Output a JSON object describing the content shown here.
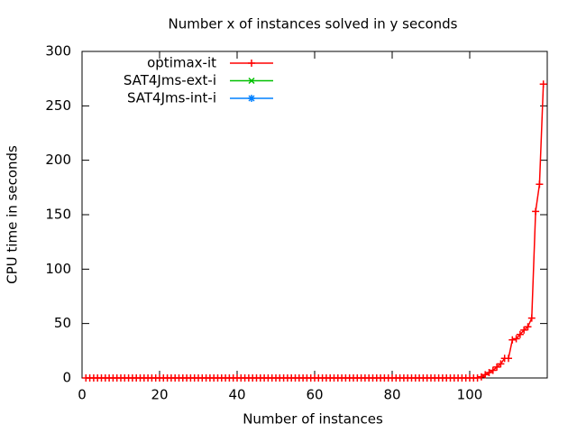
{
  "chart_data": {
    "type": "line",
    "title": "Number x of instances solved in y seconds",
    "xlabel": "Number of instances",
    "ylabel": "CPU time in seconds",
    "xlim": [
      0,
      120
    ],
    "xticks": [
      0,
      20,
      40,
      60,
      80,
      100
    ],
    "ylim": [
      0,
      300
    ],
    "yticks": [
      0,
      50,
      100,
      150,
      200,
      250,
      300
    ],
    "legend": "top-left",
    "series": [
      {
        "name": "optimax-it",
        "color": "#ff0000",
        "marker": "plus",
        "x": [
          1,
          2,
          3,
          4,
          5,
          6,
          7,
          8,
          9,
          10,
          11,
          12,
          13,
          14,
          15,
          16,
          17,
          18,
          19,
          20,
          21,
          22,
          23,
          24,
          25,
          26,
          27,
          28,
          29,
          30,
          31,
          32,
          33,
          34,
          35,
          36,
          37,
          38,
          39,
          40,
          41,
          42,
          43,
          44,
          45,
          46,
          47,
          48,
          49,
          50,
          51,
          52,
          53,
          54,
          55,
          56,
          57,
          58,
          59,
          60,
          61,
          62,
          63,
          64,
          65,
          66,
          67,
          68,
          69,
          70,
          71,
          72,
          73,
          74,
          75,
          76,
          77,
          78,
          79,
          80,
          81,
          82,
          83,
          84,
          85,
          86,
          87,
          88,
          89,
          90,
          91,
          92,
          93,
          94,
          95,
          96,
          97,
          98,
          99,
          100,
          101,
          102,
          103,
          104,
          105,
          106,
          107,
          108,
          109,
          110,
          111,
          112,
          113,
          114,
          115,
          116,
          117,
          118,
          119
        ],
        "values": [
          0,
          0,
          0,
          0,
          0,
          0,
          0,
          0,
          0,
          0,
          0,
          0,
          0,
          0,
          0,
          0,
          0,
          0,
          0,
          0,
          0,
          0,
          0,
          0,
          0,
          0,
          0,
          0,
          0,
          0,
          0,
          0,
          0,
          0,
          0,
          0,
          0,
          0,
          0,
          0,
          0,
          0,
          0,
          0,
          0,
          0,
          0,
          0,
          0,
          0,
          0,
          0,
          0,
          0,
          0,
          0,
          0,
          0,
          0,
          0,
          0,
          0,
          0,
          0,
          0,
          0,
          0,
          0,
          0,
          0,
          0,
          0,
          0,
          0,
          0,
          0,
          0,
          0,
          0,
          0,
          0,
          0,
          0,
          0,
          0,
          0,
          0,
          0,
          0,
          0,
          0,
          0,
          0,
          0,
          0,
          0,
          0,
          0,
          0,
          0,
          0,
          0,
          1,
          3,
          5,
          7,
          10,
          13,
          18,
          18,
          35,
          36,
          40,
          44,
          47,
          55,
          153,
          178,
          270
        ]
      },
      {
        "name": "SAT4Jms-ext-i",
        "color": "#00c000",
        "marker": "cross",
        "x": [],
        "values": []
      },
      {
        "name": "SAT4Jms-int-i",
        "color": "#0080ff",
        "marker": "star",
        "x": [],
        "values": []
      }
    ]
  }
}
